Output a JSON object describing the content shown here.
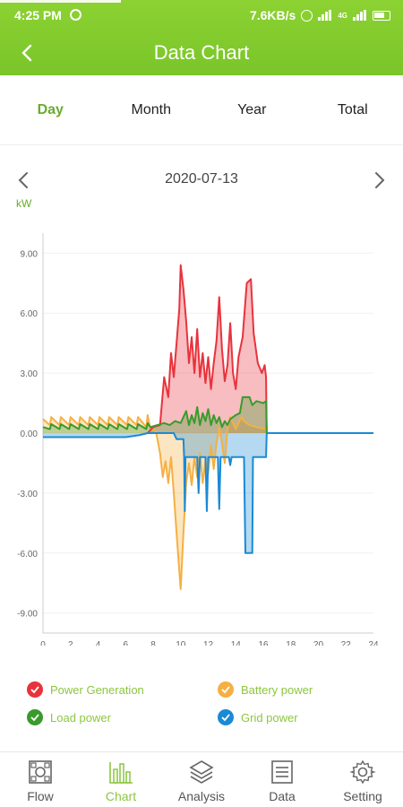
{
  "status_bar": {
    "time": "4:25 PM",
    "net_speed": "7.6KB/s",
    "network_label": "4G"
  },
  "header": {
    "title": "Data Chart",
    "back_icon": "chevron-left-icon"
  },
  "tabs": [
    {
      "label": "Day",
      "active": true
    },
    {
      "label": "Month",
      "active": false
    },
    {
      "label": "Year",
      "active": false
    },
    {
      "label": "Total",
      "active": false
    }
  ],
  "date_nav": {
    "date": "2020-07-13",
    "prev_icon": "chevron-left-icon",
    "next_icon": "chevron-right-icon"
  },
  "unit_label": "kW",
  "colors": {
    "accent": "#8cc63f",
    "power_generation": "#e8333c",
    "battery_power": "#f5b042",
    "load_power": "#3a9a2c",
    "grid_power": "#1a8ad4"
  },
  "chart_data": {
    "type": "line",
    "title": "",
    "xlabel": "",
    "ylabel": "kW",
    "xlim": [
      0,
      24
    ],
    "ylim": [
      -10,
      10
    ],
    "x_ticks": [
      "0",
      "2",
      "4",
      "6",
      "8",
      "10",
      "12",
      "14",
      "16",
      "18",
      "20",
      "22",
      "24"
    ],
    "y_ticks": [
      "9.00",
      "6.00",
      "3.00",
      "0.00",
      "-3.00",
      "-6.00",
      "-9.00"
    ],
    "y_tick_values": [
      9,
      6,
      3,
      0,
      -3,
      -6,
      -9
    ],
    "series": [
      {
        "name": "Power Generation",
        "color": "#e8333c",
        "points": [
          [
            7.6,
            0
          ],
          [
            8,
            0.3
          ],
          [
            8.5,
            0.4
          ],
          [
            8.8,
            2.8
          ],
          [
            9.1,
            1.8
          ],
          [
            9.3,
            4
          ],
          [
            9.5,
            2.8
          ],
          [
            9.7,
            4.5
          ],
          [
            9.9,
            6.2
          ],
          [
            10,
            8.4
          ],
          [
            10.2,
            7.2
          ],
          [
            10.4,
            5.6
          ],
          [
            10.6,
            3.5
          ],
          [
            10.8,
            4.8
          ],
          [
            11,
            3
          ],
          [
            11.2,
            5.2
          ],
          [
            11.4,
            2.8
          ],
          [
            11.6,
            4
          ],
          [
            11.8,
            2.5
          ],
          [
            12,
            3.8
          ],
          [
            12.2,
            2.2
          ],
          [
            12.4,
            3.5
          ],
          [
            12.6,
            4.6
          ],
          [
            12.8,
            6.8
          ],
          [
            13,
            4.2
          ],
          [
            13.2,
            2.6
          ],
          [
            13.4,
            3.4
          ],
          [
            13.6,
            5.5
          ],
          [
            13.8,
            3
          ],
          [
            14,
            2.2
          ],
          [
            14.2,
            3.8
          ],
          [
            14.5,
            4.8
          ],
          [
            14.8,
            7.5
          ],
          [
            15.1,
            7.7
          ],
          [
            15.3,
            5
          ],
          [
            15.6,
            3.5
          ],
          [
            15.9,
            3
          ],
          [
            16.1,
            3.4
          ],
          [
            16.2,
            2.8
          ],
          [
            16.25,
            0
          ]
        ]
      },
      {
        "name": "Battery power",
        "color": "#f5b042",
        "points": [
          [
            0,
            0.7
          ],
          [
            0.5,
            0.4
          ],
          [
            0.6,
            0.8
          ],
          [
            1.2,
            0.4
          ],
          [
            1.3,
            0.8
          ],
          [
            1.9,
            0.4
          ],
          [
            2,
            0.8
          ],
          [
            2.6,
            0.4
          ],
          [
            2.7,
            0.8
          ],
          [
            3.3,
            0.4
          ],
          [
            3.4,
            0.8
          ],
          [
            4,
            0.4
          ],
          [
            4.1,
            0.8
          ],
          [
            4.7,
            0.4
          ],
          [
            4.8,
            0.8
          ],
          [
            5.4,
            0.4
          ],
          [
            5.5,
            0.8
          ],
          [
            6.1,
            0.4
          ],
          [
            6.2,
            0.8
          ],
          [
            6.8,
            0.4
          ],
          [
            6.9,
            0.8
          ],
          [
            7.5,
            0.3
          ],
          [
            7.6,
            0.9
          ],
          [
            7.8,
            0.2
          ],
          [
            8.2,
            0.1
          ],
          [
            8.5,
            -1
          ],
          [
            8.7,
            -2.2
          ],
          [
            8.9,
            -1.4
          ],
          [
            9.1,
            -2.5
          ],
          [
            9.3,
            -1.2
          ],
          [
            9.5,
            -3
          ],
          [
            9.7,
            -5
          ],
          [
            10,
            -7.8
          ],
          [
            10.2,
            -5
          ],
          [
            10.4,
            -2.5
          ],
          [
            10.6,
            -1.5
          ],
          [
            10.8,
            -2.6
          ],
          [
            11,
            -1.2
          ],
          [
            11.2,
            -2.2
          ],
          [
            11.4,
            -1
          ],
          [
            11.6,
            -2.5
          ],
          [
            11.8,
            -1.4
          ],
          [
            12,
            -2
          ],
          [
            12.2,
            -0.6
          ],
          [
            12.4,
            -1.8
          ],
          [
            12.6,
            -0.5
          ],
          [
            12.8,
            0.3
          ],
          [
            13,
            -0.5
          ],
          [
            13.2,
            -1.5
          ],
          [
            13.4,
            0.2
          ],
          [
            13.6,
            0.8
          ],
          [
            13.8,
            0.5
          ],
          [
            14,
            0.2
          ],
          [
            14.2,
            0.5
          ],
          [
            14.4,
            0.8
          ],
          [
            14.6,
            0.6
          ],
          [
            15,
            0.4
          ],
          [
            15.5,
            0.3
          ],
          [
            16.2,
            0.2
          ],
          [
            16.25,
            0
          ]
        ]
      },
      {
        "name": "Load power",
        "color": "#3a9a2c",
        "points": [
          [
            0,
            0.3
          ],
          [
            0.5,
            0.2
          ],
          [
            0.6,
            0.45
          ],
          [
            1.2,
            0.2
          ],
          [
            1.3,
            0.45
          ],
          [
            1.9,
            0.2
          ],
          [
            2,
            0.45
          ],
          [
            2.6,
            0.2
          ],
          [
            2.7,
            0.45
          ],
          [
            3.3,
            0.2
          ],
          [
            3.4,
            0.45
          ],
          [
            4,
            0.2
          ],
          [
            4.1,
            0.45
          ],
          [
            4.7,
            0.2
          ],
          [
            4.8,
            0.45
          ],
          [
            5.4,
            0.2
          ],
          [
            5.5,
            0.45
          ],
          [
            6.1,
            0.2
          ],
          [
            6.2,
            0.45
          ],
          [
            6.8,
            0.2
          ],
          [
            6.9,
            0.45
          ],
          [
            7.5,
            0.2
          ],
          [
            7.6,
            0.5
          ],
          [
            7.8,
            0.3
          ],
          [
            8.3,
            0.4
          ],
          [
            8.8,
            0.5
          ],
          [
            9.2,
            0.4
          ],
          [
            9.6,
            0.6
          ],
          [
            10,
            0.5
          ],
          [
            10.4,
            1.1
          ],
          [
            10.6,
            0.4
          ],
          [
            10.8,
            0.9
          ],
          [
            11,
            0.5
          ],
          [
            11.2,
            1.3
          ],
          [
            11.4,
            0.4
          ],
          [
            11.6,
            1
          ],
          [
            11.8,
            0.6
          ],
          [
            12,
            1.2
          ],
          [
            12.2,
            0.4
          ],
          [
            12.4,
            0.9
          ],
          [
            12.6,
            0.5
          ],
          [
            12.8,
            0.8
          ],
          [
            13,
            0.3
          ],
          [
            13.2,
            0.6
          ],
          [
            13.4,
            0.4
          ],
          [
            13.6,
            0.7
          ],
          [
            14,
            0.9
          ],
          [
            14.3,
            1
          ],
          [
            14.5,
            1.8
          ],
          [
            15,
            1.8
          ],
          [
            15.2,
            1.4
          ],
          [
            15.5,
            1.6
          ],
          [
            16,
            1.5
          ],
          [
            16.2,
            1.6
          ],
          [
            16.25,
            0
          ]
        ]
      },
      {
        "name": "Grid power",
        "color": "#1a8ad4",
        "points": [
          [
            0,
            -0.2
          ],
          [
            6,
            -0.2
          ],
          [
            7,
            -0.1
          ],
          [
            7.6,
            0
          ],
          [
            9.5,
            0
          ],
          [
            9.7,
            -0.3
          ],
          [
            10.2,
            -0.3
          ],
          [
            10.25,
            -1.2
          ],
          [
            10.3,
            -3.9
          ],
          [
            10.35,
            -1.2
          ],
          [
            11.2,
            -1.2
          ],
          [
            11.3,
            -3
          ],
          [
            11.4,
            -1.2
          ],
          [
            11.8,
            -1.2
          ],
          [
            11.9,
            -3.9
          ],
          [
            12,
            -1.2
          ],
          [
            12.7,
            -1.2
          ],
          [
            12.8,
            -3.8
          ],
          [
            12.9,
            -1.2
          ],
          [
            13.5,
            -1.2
          ],
          [
            13.6,
            -1.6
          ],
          [
            13.7,
            -1.2
          ],
          [
            14.6,
            -1.2
          ],
          [
            14.7,
            -6
          ],
          [
            15.2,
            -6
          ],
          [
            15.25,
            -1.2
          ],
          [
            15.5,
            -1.2
          ],
          [
            16.2,
            -1.2
          ],
          [
            16.25,
            0
          ],
          [
            24,
            0
          ]
        ]
      }
    ],
    "legend": {
      "position": "bottom"
    },
    "grid": true
  },
  "legend": [
    {
      "label": "Power Generation",
      "color": "#e8333c",
      "icon": "check-circle-icon"
    },
    {
      "label": "Battery power",
      "color": "#f5b042",
      "icon": "check-circle-icon"
    },
    {
      "label": "Load power",
      "color": "#3a9a2c",
      "icon": "check-circle-icon"
    },
    {
      "label": "Grid power",
      "color": "#1a8ad4",
      "icon": "check-circle-icon"
    }
  ],
  "bottom_nav": [
    {
      "label": "Flow",
      "icon": "flow-grid-icon",
      "active": false
    },
    {
      "label": "Chart",
      "icon": "bar-chart-icon",
      "active": true
    },
    {
      "label": "Analysis",
      "icon": "layers-icon",
      "active": false
    },
    {
      "label": "Data",
      "icon": "list-icon",
      "active": false
    },
    {
      "label": "Setting",
      "icon": "gear-icon",
      "active": false
    }
  ]
}
